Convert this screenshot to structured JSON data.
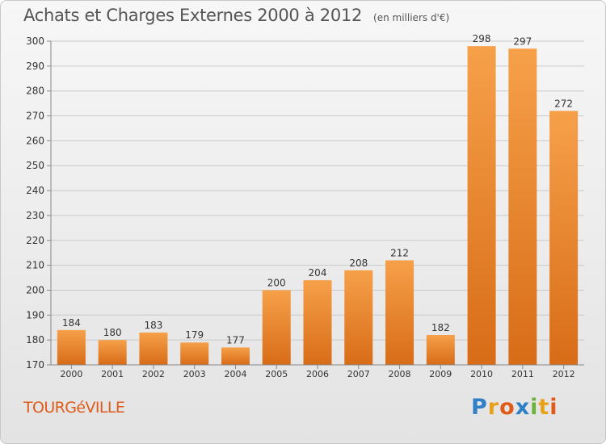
{
  "chart_data": {
    "type": "bar",
    "title": "Achats et Charges Externes 2000 à 2012",
    "subtitle": "(en milliers d'€)",
    "categories": [
      "2000",
      "2001",
      "2002",
      "2003",
      "2004",
      "2005",
      "2006",
      "2007",
      "2008",
      "2009",
      "2010",
      "2011",
      "2012"
    ],
    "values": [
      184,
      180,
      183,
      179,
      177,
      200,
      204,
      208,
      212,
      182,
      298,
      297,
      272
    ],
    "ylim": [
      170,
      300
    ],
    "yticks": [
      170,
      180,
      190,
      200,
      210,
      220,
      230,
      240,
      250,
      260,
      270,
      280,
      290,
      300
    ],
    "grid": true,
    "bar_color": "#f0922e"
  },
  "location": "TOURGéVILLE",
  "logo": {
    "letters": [
      "P",
      "r",
      "o",
      "x",
      "i",
      "t",
      "i"
    ],
    "colors": [
      "#2f7fc6",
      "#e8a21a",
      "#e05a1a",
      "#2f7fc6",
      "#6cb33e",
      "#e8a21a",
      "#e05a1a"
    ]
  }
}
